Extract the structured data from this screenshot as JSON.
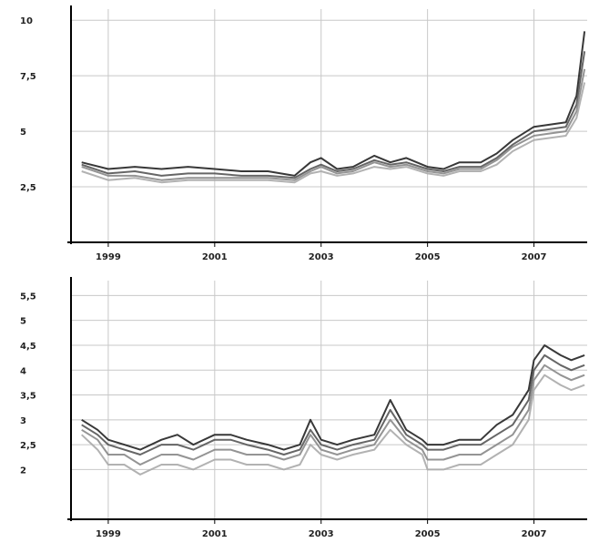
{
  "chart_data": [
    {
      "type": "line",
      "title": "",
      "xlabel": "",
      "ylabel": "",
      "grid": true,
      "xlim": [
        1998.3,
        2008.0
      ],
      "ylim": [
        0,
        10.5
      ],
      "yticks": [
        2.5,
        5,
        7.5,
        10
      ],
      "ytick_labels": [
        "2,5",
        "5",
        "7,5",
        "10"
      ],
      "xticks": [
        1999,
        2001,
        2003,
        2005,
        2007
      ],
      "xtick_labels": [
        "1999",
        "2001",
        "2003",
        "2005",
        "2007"
      ],
      "colors": [
        "#222222",
        "#555555",
        "#888888",
        "#aaaaaa"
      ],
      "series": [
        {
          "x": [
            1998.5,
            1999,
            1999.5,
            2000,
            2000.5,
            2001,
            2001.5,
            2002,
            2002.5,
            2002.8,
            2003,
            2003.3,
            2003.6,
            2004,
            2004.3,
            2004.6,
            2005,
            2005.3,
            2005.6,
            2006,
            2006.3,
            2006.6,
            2007,
            2007.3,
            2007.6,
            2007.8,
            2007.95
          ],
          "y": [
            3.6,
            3.3,
            3.4,
            3.3,
            3.4,
            3.3,
            3.2,
            3.2,
            3.0,
            3.6,
            3.8,
            3.3,
            3.4,
            3.9,
            3.6,
            3.8,
            3.4,
            3.3,
            3.6,
            3.6,
            4.0,
            4.6,
            5.2,
            5.3,
            5.4,
            6.6,
            9.5
          ]
        },
        {
          "x": [
            1998.5,
            1999,
            1999.5,
            2000,
            2000.5,
            2001,
            2001.5,
            2002,
            2002.5,
            2002.8,
            2003,
            2003.3,
            2003.6,
            2004,
            2004.3,
            2004.6,
            2005,
            2005.3,
            2005.6,
            2006,
            2006.3,
            2006.6,
            2007,
            2007.3,
            2007.6,
            2007.8,
            2007.95
          ],
          "y": [
            3.5,
            3.1,
            3.2,
            3.0,
            3.1,
            3.1,
            3.0,
            3.0,
            2.9,
            3.3,
            3.5,
            3.2,
            3.3,
            3.7,
            3.5,
            3.6,
            3.3,
            3.2,
            3.4,
            3.4,
            3.8,
            4.4,
            5.0,
            5.1,
            5.2,
            6.2,
            8.6
          ]
        },
        {
          "x": [
            1998.5,
            1999,
            1999.5,
            2000,
            2000.5,
            2001,
            2001.5,
            2002,
            2002.5,
            2002.8,
            2003,
            2003.3,
            2003.6,
            2004,
            2004.3,
            2004.6,
            2005,
            2005.3,
            2005.6,
            2006,
            2006.3,
            2006.6,
            2007,
            2007.3,
            2007.6,
            2007.8,
            2007.95
          ],
          "y": [
            3.4,
            3.0,
            3.0,
            2.8,
            2.9,
            2.9,
            2.9,
            2.9,
            2.8,
            3.2,
            3.4,
            3.1,
            3.2,
            3.6,
            3.4,
            3.5,
            3.2,
            3.1,
            3.3,
            3.3,
            3.7,
            4.3,
            4.8,
            4.9,
            5.0,
            5.9,
            7.8
          ]
        },
        {
          "x": [
            1998.5,
            1999,
            1999.5,
            2000,
            2000.5,
            2001,
            2001.5,
            2002,
            2002.5,
            2002.8,
            2003,
            2003.3,
            2003.6,
            2004,
            2004.3,
            2004.6,
            2005,
            2005.3,
            2005.6,
            2006,
            2006.3,
            2006.6,
            2007,
            2007.3,
            2007.6,
            2007.8,
            2007.95
          ],
          "y": [
            3.2,
            2.8,
            2.9,
            2.7,
            2.8,
            2.8,
            2.8,
            2.8,
            2.7,
            3.1,
            3.2,
            3.0,
            3.1,
            3.4,
            3.3,
            3.4,
            3.1,
            3.0,
            3.2,
            3.2,
            3.5,
            4.1,
            4.6,
            4.7,
            4.8,
            5.6,
            7.2
          ]
        }
      ]
    },
    {
      "type": "line",
      "title": "",
      "xlabel": "",
      "ylabel": "",
      "grid": true,
      "xlim": [
        1998.3,
        2008.0
      ],
      "ylim": [
        1.0,
        5.8
      ],
      "yticks": [
        2,
        2.5,
        3,
        3.5,
        4,
        4.5,
        5,
        5.5
      ],
      "ytick_labels": [
        "2",
        "2,5",
        "3",
        "3,5",
        "4",
        "4,5",
        "5",
        "5,5"
      ],
      "xticks": [
        1999,
        2001,
        2003,
        2005,
        2007
      ],
      "xtick_labels": [
        "1999",
        "2001",
        "2003",
        "2005",
        "2007"
      ],
      "colors": [
        "#222222",
        "#555555",
        "#888888",
        "#aaaaaa"
      ],
      "series": [
        {
          "x": [
            1998.5,
            1998.8,
            1999,
            1999.3,
            1999.6,
            2000,
            2000.3,
            2000.6,
            2001,
            2001.3,
            2001.6,
            2002,
            2002.3,
            2002.6,
            2002.8,
            2003,
            2003.3,
            2003.6,
            2004,
            2004.3,
            2004.6,
            2004.9,
            2005,
            2005.3,
            2005.6,
            2006,
            2006.3,
            2006.6,
            2006.9,
            2007,
            2007.2,
            2007.5,
            2007.7,
            2007.95
          ],
          "y": [
            3.0,
            2.8,
            2.6,
            2.5,
            2.4,
            2.6,
            2.7,
            2.5,
            2.7,
            2.7,
            2.6,
            2.5,
            2.4,
            2.5,
            3.0,
            2.6,
            2.5,
            2.6,
            2.7,
            3.4,
            2.8,
            2.6,
            2.5,
            2.5,
            2.6,
            2.6,
            2.9,
            3.1,
            3.6,
            4.2,
            4.5,
            4.3,
            4.2,
            4.3
          ]
        },
        {
          "x": [
            1998.5,
            1998.8,
            1999,
            1999.3,
            1999.6,
            2000,
            2000.3,
            2000.6,
            2001,
            2001.3,
            2001.6,
            2002,
            2002.3,
            2002.6,
            2002.8,
            2003,
            2003.3,
            2003.6,
            2004,
            2004.3,
            2004.6,
            2004.9,
            2005,
            2005.3,
            2005.6,
            2006,
            2006.3,
            2006.6,
            2006.9,
            2007,
            2007.2,
            2007.5,
            2007.7,
            2007.95
          ],
          "y": [
            2.9,
            2.7,
            2.5,
            2.4,
            2.3,
            2.5,
            2.5,
            2.4,
            2.6,
            2.6,
            2.5,
            2.4,
            2.3,
            2.4,
            2.8,
            2.5,
            2.4,
            2.5,
            2.6,
            3.2,
            2.7,
            2.5,
            2.4,
            2.4,
            2.5,
            2.5,
            2.7,
            2.9,
            3.4,
            4.0,
            4.3,
            4.1,
            4.0,
            4.1
          ]
        },
        {
          "x": [
            1998.5,
            1998.8,
            1999,
            1999.3,
            1999.6,
            2000,
            2000.3,
            2000.6,
            2001,
            2001.3,
            2001.6,
            2002,
            2002.3,
            2002.6,
            2002.8,
            2003,
            2003.3,
            2003.6,
            2004,
            2004.3,
            2004.6,
            2004.9,
            2005,
            2005.3,
            2005.6,
            2006,
            2006.3,
            2006.6,
            2006.9,
            2007,
            2007.2,
            2007.5,
            2007.7,
            2007.95
          ],
          "y": [
            2.8,
            2.6,
            2.3,
            2.3,
            2.1,
            2.3,
            2.3,
            2.2,
            2.4,
            2.4,
            2.3,
            2.3,
            2.2,
            2.3,
            2.7,
            2.4,
            2.3,
            2.4,
            2.5,
            3.0,
            2.6,
            2.4,
            2.2,
            2.2,
            2.3,
            2.3,
            2.5,
            2.7,
            3.2,
            3.8,
            4.1,
            3.9,
            3.8,
            3.9
          ]
        },
        {
          "x": [
            1998.5,
            1998.8,
            1999,
            1999.3,
            1999.6,
            2000,
            2000.3,
            2000.6,
            2001,
            2001.3,
            2001.6,
            2002,
            2002.3,
            2002.6,
            2002.8,
            2003,
            2003.3,
            2003.6,
            2004,
            2004.3,
            2004.6,
            2004.9,
            2005,
            2005.3,
            2005.6,
            2006,
            2006.3,
            2006.6,
            2006.9,
            2007,
            2007.2,
            2007.5,
            2007.7,
            2007.95
          ],
          "y": [
            2.7,
            2.4,
            2.1,
            2.1,
            1.9,
            2.1,
            2.1,
            2.0,
            2.2,
            2.2,
            2.1,
            2.1,
            2.0,
            2.1,
            2.5,
            2.3,
            2.2,
            2.3,
            2.4,
            2.8,
            2.5,
            2.3,
            2.0,
            2.0,
            2.1,
            2.1,
            2.3,
            2.5,
            3.0,
            3.6,
            3.9,
            3.7,
            3.6,
            3.7
          ]
        }
      ]
    }
  ]
}
